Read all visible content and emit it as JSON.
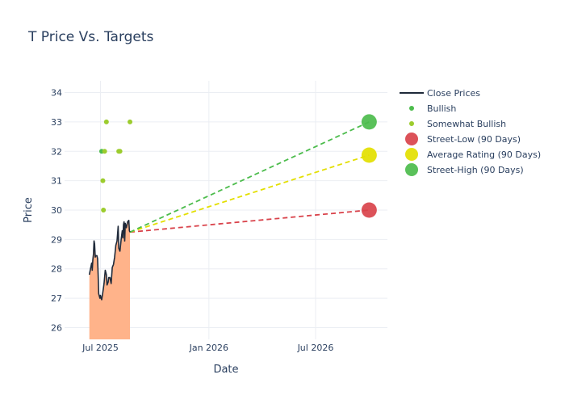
{
  "chart_data": {
    "type": "line",
    "title": "T Price Vs. Targets",
    "xlabel": "Date",
    "ylabel": "Price",
    "xlim": [
      "2025-05-01",
      "2026-10-31"
    ],
    "ylim": [
      25.6,
      34.4
    ],
    "grid": true,
    "legend_position": "right",
    "x_ticks": [
      {
        "date": "2025-07-01",
        "label": "Jul 2025"
      },
      {
        "date": "2026-01-01",
        "label": "Jan 2026"
      },
      {
        "date": "2026-07-01",
        "label": "Jul 2026"
      }
    ],
    "y_ticks": [
      26,
      27,
      28,
      29,
      30,
      31,
      32,
      33,
      34
    ],
    "close_prices": {
      "name": "Close Prices",
      "color": "#1f2a3a",
      "fill_color": "#ffb38a",
      "points": [
        [
          "2025-06-12",
          27.8
        ],
        [
          "2025-06-14",
          28.0
        ],
        [
          "2025-06-16",
          28.2
        ],
        [
          "2025-06-17",
          27.95
        ],
        [
          "2025-06-18",
          28.3
        ],
        [
          "2025-06-19",
          28.5
        ],
        [
          "2025-06-20",
          28.95
        ],
        [
          "2025-06-21",
          28.85
        ],
        [
          "2025-06-22",
          28.4
        ],
        [
          "2025-06-23",
          28.45
        ],
        [
          "2025-06-25",
          28.45
        ],
        [
          "2025-06-26",
          28.35
        ],
        [
          "2025-06-27",
          27.8
        ],
        [
          "2025-06-28",
          27.15
        ],
        [
          "2025-06-30",
          27.0
        ],
        [
          "2025-07-01",
          27.1
        ],
        [
          "2025-07-02",
          27.0
        ],
        [
          "2025-07-03",
          26.95
        ],
        [
          "2025-07-05",
          27.2
        ],
        [
          "2025-07-07",
          27.5
        ],
        [
          "2025-07-09",
          27.95
        ],
        [
          "2025-07-11",
          27.8
        ],
        [
          "2025-07-12",
          27.45
        ],
        [
          "2025-07-14",
          27.55
        ],
        [
          "2025-07-15",
          27.7
        ],
        [
          "2025-07-17",
          27.7
        ],
        [
          "2025-07-19",
          27.5
        ],
        [
          "2025-07-21",
          28.05
        ],
        [
          "2025-07-23",
          28.15
        ],
        [
          "2025-07-25",
          28.4
        ],
        [
          "2025-07-27",
          28.8
        ],
        [
          "2025-07-29",
          28.95
        ],
        [
          "2025-07-31",
          29.45
        ],
        [
          "2025-08-01",
          28.7
        ],
        [
          "2025-08-03",
          28.6
        ],
        [
          "2025-08-05",
          29.0
        ],
        [
          "2025-08-07",
          29.3
        ],
        [
          "2025-08-08",
          29.05
        ],
        [
          "2025-08-09",
          29.5
        ],
        [
          "2025-08-10",
          29.6
        ],
        [
          "2025-08-11",
          28.95
        ],
        [
          "2025-08-12",
          29.55
        ],
        [
          "2025-08-14",
          29.4
        ],
        [
          "2025-08-16",
          29.6
        ],
        [
          "2025-08-18",
          29.65
        ],
        [
          "2025-08-19",
          29.3
        ],
        [
          "2025-08-20",
          29.25
        ]
      ]
    },
    "ratings": [
      {
        "name": "Bullish",
        "color": "#4cbc4c",
        "points": [
          [
            "2025-07-03",
            32.0
          ]
        ]
      },
      {
        "name": "Somewhat Bullish",
        "color": "#9ccc2e",
        "points": [
          [
            "2025-07-05",
            31.0
          ],
          [
            "2025-07-06",
            30.0
          ],
          [
            "2025-07-08",
            32.0
          ],
          [
            "2025-07-11",
            33.0
          ],
          [
            "2025-08-01",
            32.0
          ],
          [
            "2025-08-03",
            32.0
          ],
          [
            "2025-08-20",
            33.0
          ]
        ]
      }
    ],
    "targets": {
      "start_date": "2025-08-20",
      "start_price": 29.25,
      "end_date": "2026-09-30",
      "series": [
        {
          "name": "Street-Low (90 Days)",
          "value": 30.0,
          "color": "#d9434b"
        },
        {
          "name": "Average Rating (90 Days)",
          "value": 31.87,
          "color": "#e3df00"
        },
        {
          "name": "Street-High (90 Days)",
          "value": 33.0,
          "color": "#4cbc4c"
        }
      ]
    },
    "legend": [
      {
        "name": "Close Prices",
        "kind": "line",
        "color": "#1f2a3a"
      },
      {
        "name": "Bullish",
        "kind": "dot",
        "color": "#4cbc4c"
      },
      {
        "name": "Somewhat Bullish",
        "kind": "dot",
        "color": "#9ccc2e"
      },
      {
        "name": "Street-Low (90 Days)",
        "kind": "big",
        "color": "#d9434b"
      },
      {
        "name": "Average Rating (90 Days)",
        "kind": "big",
        "color": "#e3df00"
      },
      {
        "name": "Street-High (90 Days)",
        "kind": "big",
        "color": "#4cbc4c"
      }
    ]
  }
}
